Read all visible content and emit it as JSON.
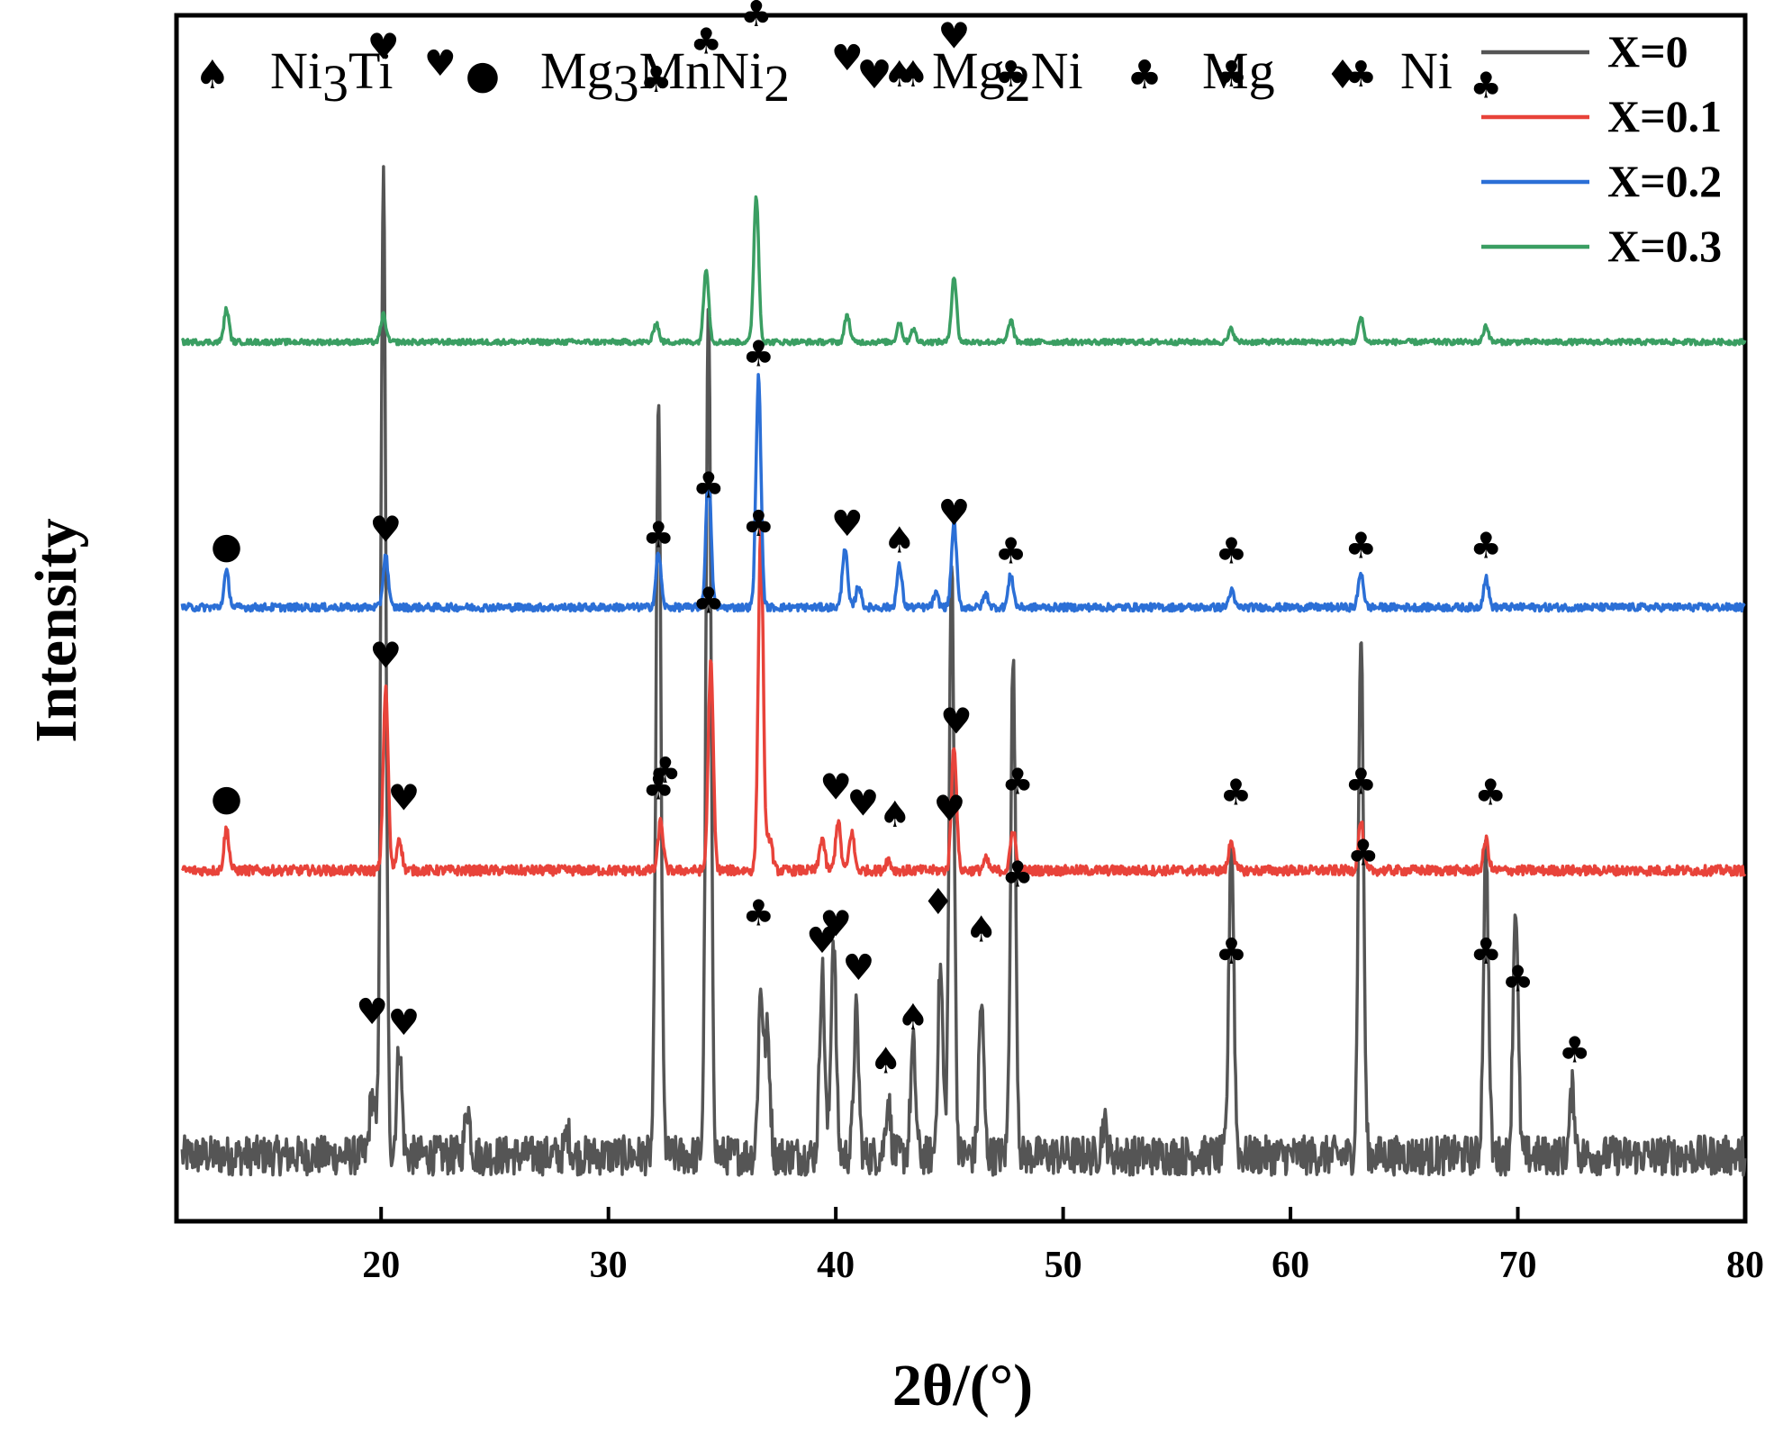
{
  "chart_data": {
    "type": "line",
    "title": "",
    "xlabel": "2θ/(°)",
    "ylabel": "Intensity",
    "xlim": [
      11,
      80
    ],
    "xticks": [
      20,
      30,
      40,
      50,
      60,
      70,
      80
    ],
    "ylim": [
      -0.6,
      10.4
    ],
    "yticks_shown": false,
    "grid": false,
    "legend_position": "top-right",
    "series": [
      {
        "name": "X=0",
        "color": "#555555",
        "baseline": 0,
        "noise": 0.18,
        "peaks": [
          [
            19.6,
            0.55
          ],
          [
            20.1,
            8.9
          ],
          [
            20.8,
            1.0
          ],
          [
            23.8,
            0.45
          ],
          [
            28.2,
            0.2
          ],
          [
            32.2,
            6.8
          ],
          [
            34.4,
            7.7
          ],
          [
            36.7,
            1.5
          ],
          [
            37.0,
            1.1
          ],
          [
            39.4,
            1.7
          ],
          [
            39.9,
            2.0
          ],
          [
            40.9,
            1.3
          ],
          [
            42.3,
            0.5
          ],
          [
            43.4,
            1.0
          ],
          [
            44.6,
            1.7
          ],
          [
            45.1,
            5.4
          ],
          [
            46.4,
            1.4
          ],
          [
            47.8,
            4.5
          ],
          [
            51.8,
            0.3
          ],
          [
            57.4,
            2.9
          ],
          [
            63.1,
            4.8
          ],
          [
            68.6,
            2.8
          ],
          [
            69.9,
            2.3
          ],
          [
            72.4,
            0.6
          ]
        ]
      },
      {
        "name": "X=0.1",
        "color": "#e8433a",
        "baseline": 2.6,
        "noise": 0.045,
        "peaks": [
          [
            13.2,
            0.38
          ],
          [
            20.2,
            1.65
          ],
          [
            20.8,
            0.3
          ],
          [
            32.3,
            0.45
          ],
          [
            34.5,
            1.9
          ],
          [
            36.7,
            3.1
          ],
          [
            37.1,
            0.3
          ],
          [
            39.4,
            0.3
          ],
          [
            40.1,
            0.45
          ],
          [
            40.7,
            0.35
          ],
          [
            42.3,
            0.1
          ],
          [
            45.2,
            1.15
          ],
          [
            46.6,
            0.1
          ],
          [
            47.8,
            0.38
          ],
          [
            57.4,
            0.28
          ],
          [
            63.1,
            0.45
          ],
          [
            68.6,
            0.28
          ]
        ]
      },
      {
        "name": "X=0.2",
        "color": "#2b6fd6",
        "baseline": 5.0,
        "noise": 0.035,
        "peaks": [
          [
            13.2,
            0.32
          ],
          [
            20.2,
            0.48
          ],
          [
            32.2,
            0.5
          ],
          [
            34.4,
            1.25
          ],
          [
            36.6,
            2.1
          ],
          [
            40.4,
            0.55
          ],
          [
            41.0,
            0.2
          ],
          [
            42.8,
            0.38
          ],
          [
            44.4,
            0.12
          ],
          [
            45.2,
            0.78
          ],
          [
            46.6,
            0.12
          ],
          [
            47.7,
            0.3
          ],
          [
            57.4,
            0.15
          ],
          [
            63.1,
            0.32
          ],
          [
            68.6,
            0.27
          ]
        ]
      },
      {
        "name": "X=0.3",
        "color": "#3a9e62",
        "baseline": 7.42,
        "noise": 0.025,
        "peaks": [
          [
            13.2,
            0.3
          ],
          [
            20.1,
            0.25
          ],
          [
            32.1,
            0.18
          ],
          [
            34.3,
            0.68
          ],
          [
            36.5,
            1.33
          ],
          [
            40.5,
            0.25
          ],
          [
            42.8,
            0.18
          ],
          [
            43.4,
            0.12
          ],
          [
            45.2,
            0.6
          ],
          [
            47.7,
            0.2
          ],
          [
            57.4,
            0.12
          ],
          [
            63.1,
            0.22
          ],
          [
            68.6,
            0.15
          ]
        ]
      }
    ],
    "phase_legend": [
      {
        "symbol": "♠",
        "label": "Ni",
        "sub": "3",
        "tail": "Ti"
      },
      {
        "symbol": "●",
        "label": "Mg",
        "sub": "3",
        "tail": "MnNi",
        "sub2": "2"
      },
      {
        "symbol": "♥",
        "label": "Mg",
        "sub": "2",
        "tail": "Ni"
      },
      {
        "symbol": "♣",
        "label": "Mg",
        "sub": "",
        "tail": ""
      },
      {
        "symbol": "♦",
        "label": "Ni",
        "sub": "",
        "tail": ""
      }
    ],
    "peak_markers": [
      {
        "x": 20.1,
        "y": 10.0,
        "symbol": "♥"
      },
      {
        "x": 22.6,
        "y": 9.85,
        "symbol": "♥"
      },
      {
        "x": 32.1,
        "y": 9.7,
        "symbol": "♣"
      },
      {
        "x": 34.3,
        "y": 10.05,
        "symbol": "♣"
      },
      {
        "x": 36.5,
        "y": 10.3,
        "symbol": "♣"
      },
      {
        "x": 40.5,
        "y": 9.9,
        "symbol": "♥"
      },
      {
        "x": 42.8,
        "y": 9.75,
        "symbol": "♠"
      },
      {
        "x": 43.4,
        "y": 9.75,
        "symbol": "♠"
      },
      {
        "x": 45.2,
        "y": 10.1,
        "symbol": "♥"
      },
      {
        "x": 47.7,
        "y": 9.75,
        "symbol": "♣"
      },
      {
        "x": 57.4,
        "y": 9.75,
        "symbol": "♣"
      },
      {
        "x": 63.1,
        "y": 9.75,
        "symbol": "♣"
      },
      {
        "x": 68.6,
        "y": 9.65,
        "symbol": "♣"
      },
      {
        "x": 13.2,
        "y": 5.45,
        "symbol": "●"
      },
      {
        "x": 20.2,
        "y": 5.6,
        "symbol": "♥"
      },
      {
        "x": 32.2,
        "y": 5.55,
        "symbol": "♣"
      },
      {
        "x": 34.4,
        "y": 6.0,
        "symbol": "♣"
      },
      {
        "x": 36.6,
        "y": 7.2,
        "symbol": "♣"
      },
      {
        "x": 40.5,
        "y": 5.65,
        "symbol": "♥"
      },
      {
        "x": 42.8,
        "y": 5.5,
        "symbol": "♠"
      },
      {
        "x": 45.2,
        "y": 5.75,
        "symbol": "♥"
      },
      {
        "x": 47.7,
        "y": 5.4,
        "symbol": "♣"
      },
      {
        "x": 57.4,
        "y": 5.4,
        "symbol": "♣"
      },
      {
        "x": 63.1,
        "y": 5.45,
        "symbol": "♣"
      },
      {
        "x": 68.6,
        "y": 5.45,
        "symbol": "♣"
      },
      {
        "x": 13.2,
        "y": 3.15,
        "symbol": "●"
      },
      {
        "x": 20.2,
        "y": 4.45,
        "symbol": "♥"
      },
      {
        "x": 21.0,
        "y": 3.15,
        "symbol": "♥"
      },
      {
        "x": 32.2,
        "y": 3.25,
        "symbol": "♣"
      },
      {
        "x": 34.4,
        "y": 4.95,
        "symbol": "♣"
      },
      {
        "x": 36.6,
        "y": 5.65,
        "symbol": "♣"
      },
      {
        "x": 40.0,
        "y": 3.25,
        "symbol": "♥"
      },
      {
        "x": 41.2,
        "y": 3.1,
        "symbol": "♥"
      },
      {
        "x": 42.6,
        "y": 3.0,
        "symbol": "♠"
      },
      {
        "x": 45.3,
        "y": 3.85,
        "symbol": "♥"
      },
      {
        "x": 48.0,
        "y": 3.3,
        "symbol": "♣"
      },
      {
        "x": 57.6,
        "y": 3.2,
        "symbol": "♣"
      },
      {
        "x": 63.1,
        "y": 3.3,
        "symbol": "♣"
      },
      {
        "x": 68.8,
        "y": 3.2,
        "symbol": "♣"
      },
      {
        "x": 19.6,
        "y": 1.2,
        "symbol": "♥"
      },
      {
        "x": 21.0,
        "y": 1.1,
        "symbol": "♥"
      },
      {
        "x": 32.5,
        "y": 3.4,
        "symbol": "♣"
      },
      {
        "x": 36.6,
        "y": 2.1,
        "symbol": "♣"
      },
      {
        "x": 39.4,
        "y": 1.85,
        "symbol": "♥"
      },
      {
        "x": 40.0,
        "y": 2.0,
        "symbol": "♥"
      },
      {
        "x": 41.0,
        "y": 1.6,
        "symbol": "♥"
      },
      {
        "x": 42.2,
        "y": 0.75,
        "symbol": "♠"
      },
      {
        "x": 43.4,
        "y": 1.15,
        "symbol": "♠"
      },
      {
        "x": 44.5,
        "y": 2.2,
        "symbol": "♦"
      },
      {
        "x": 45.0,
        "y": 3.05,
        "symbol": "♥"
      },
      {
        "x": 46.4,
        "y": 1.95,
        "symbol": "♠"
      },
      {
        "x": 48.0,
        "y": 2.45,
        "symbol": "♣"
      },
      {
        "x": 57.4,
        "y": 1.75,
        "symbol": "♣"
      },
      {
        "x": 63.2,
        "y": 2.65,
        "symbol": "♣"
      },
      {
        "x": 68.6,
        "y": 1.75,
        "symbol": "♣"
      },
      {
        "x": 70.0,
        "y": 1.5,
        "symbol": "♣"
      },
      {
        "x": 72.5,
        "y": 0.85,
        "symbol": "♣"
      }
    ]
  }
}
